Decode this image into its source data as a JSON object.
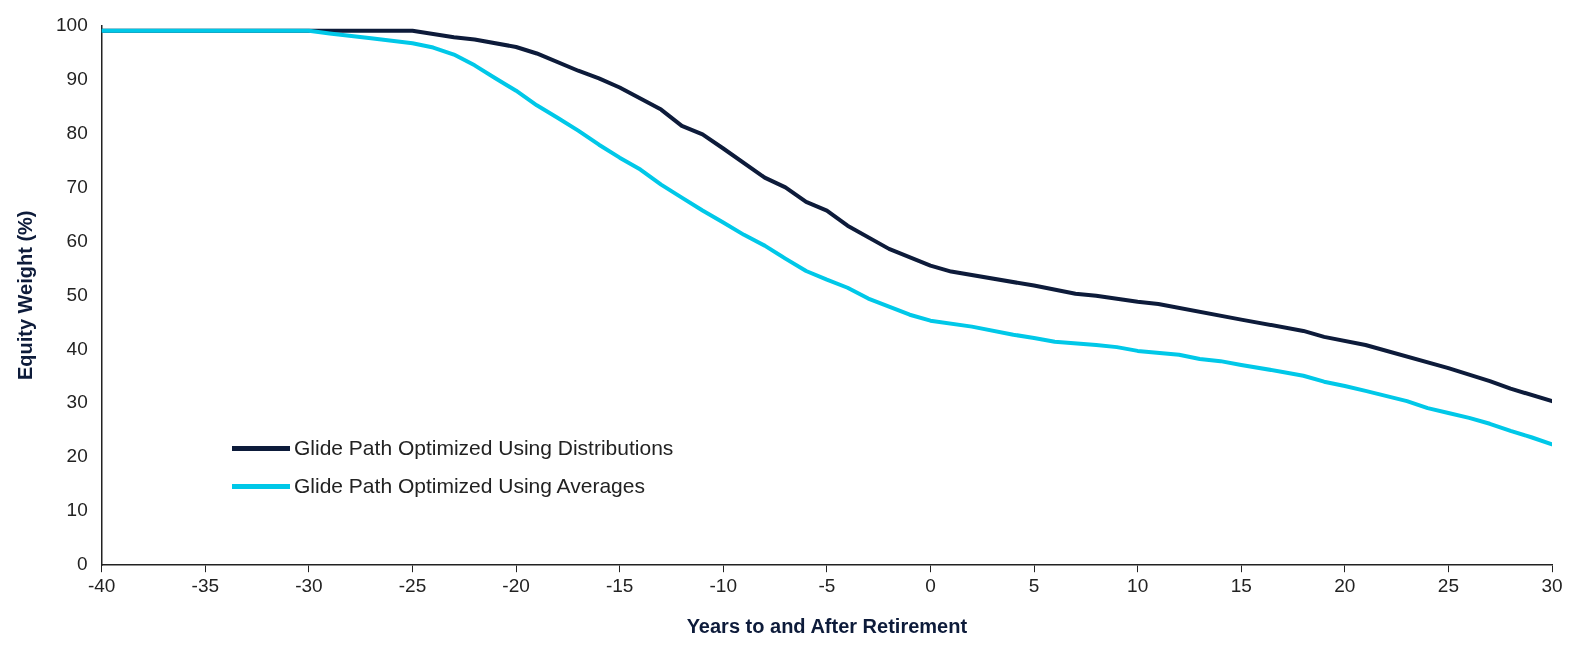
{
  "chart_data": {
    "type": "line",
    "xlabel": "Years to and After Retirement",
    "ylabel": "Equity Weight (%)",
    "xlim": [
      -40,
      30
    ],
    "xticks": [
      -40,
      -35,
      -30,
      -25,
      -20,
      -15,
      -10,
      -5,
      0,
      5,
      10,
      15,
      20,
      25,
      30
    ],
    "ylim": [
      0,
      100
    ],
    "yticks": [
      0,
      10,
      20,
      30,
      40,
      50,
      60,
      70,
      80,
      90,
      100
    ],
    "grid": false,
    "legend": "bottom left",
    "marker": "none",
    "line_style": "solid",
    "series": [
      {
        "name": "Glide Path Optimized Using Distributions",
        "color": "#0d1b3a",
        "x": [
          -40,
          -35,
          -30,
          -25,
          -23,
          -22,
          -20,
          -19,
          -17,
          -16,
          -15,
          -13,
          -12,
          -11,
          -10,
          -8,
          -7,
          -6,
          -5,
          -4,
          -2,
          0,
          1,
          5,
          7,
          8,
          10,
          11,
          15,
          18,
          19,
          21,
          25,
          27,
          28,
          30
        ],
        "values": [
          99,
          99,
          99,
          99,
          97.8,
          97.4,
          96,
          94.8,
          91.6,
          90.2,
          88.5,
          84.4,
          81.4,
          79.8,
          77.2,
          71.8,
          70,
          67.3,
          65.7,
          62.9,
          58.6,
          55.5,
          54.4,
          51.8,
          50.3,
          49.9,
          48.8,
          48.4,
          45.5,
          43.4,
          42.3,
          40.8,
          36.5,
          34.1,
          32.7,
          30.4
        ]
      },
      {
        "name": "Glide Path Optimized Using Averages",
        "color": "#00c8e8",
        "x": [
          -40,
          -35,
          -30,
          -29,
          -27,
          -25,
          -24,
          -23,
          -22,
          -21,
          -20,
          -19,
          -18,
          -17,
          -16,
          -15,
          -14,
          -13,
          -12,
          -11,
          -10,
          -9,
          -8,
          -7,
          -6,
          -5,
          -4,
          -3,
          -2,
          -1,
          0,
          2,
          4,
          5,
          6,
          8,
          9,
          10,
          12,
          13,
          14,
          15,
          17,
          18,
          19,
          20,
          21,
          23,
          24,
          25,
          26,
          27,
          28,
          29,
          30
        ],
        "values": [
          99,
          99,
          99,
          98.5,
          97.6,
          96.7,
          95.9,
          94.6,
          92.6,
          90.2,
          87.9,
          85.2,
          82.9,
          80.5,
          77.9,
          75.5,
          73.3,
          70.5,
          68.1,
          65.7,
          63.5,
          61.2,
          59.2,
          56.8,
          54.5,
          52.9,
          51.4,
          49.4,
          47.9,
          46.4,
          45.3,
          44.2,
          42.7,
          42.1,
          41.4,
          40.8,
          40.4,
          39.7,
          39,
          38.2,
          37.8,
          37.1,
          35.8,
          35.1,
          34,
          33.2,
          32.3,
          30.4,
          29.1,
          28.2,
          27.3,
          26.2,
          24.9,
          23.7,
          22.4
        ]
      }
    ]
  }
}
